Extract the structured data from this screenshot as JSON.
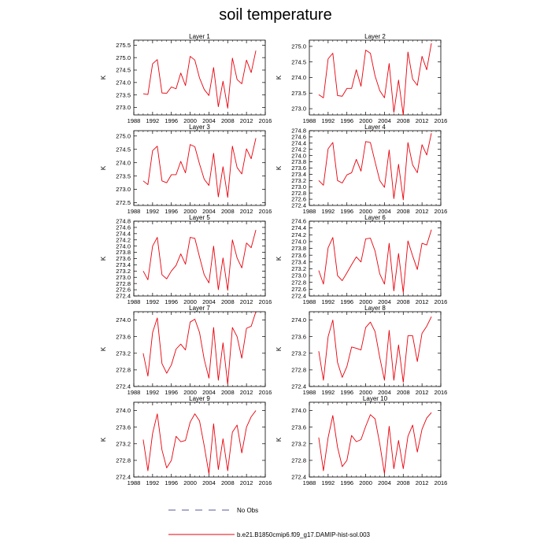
{
  "title": "soil temperature",
  "legend": {
    "obs_label": "No Obs",
    "model_label": "b.e21.B1850cmip6.f09_g17.DAMIP-hist-sol.003"
  },
  "colors": {
    "model": "#e8000b",
    "obs": "#5a5a9a",
    "axis": "#000000"
  },
  "chart_data": [
    {
      "type": "line",
      "title": "Layer 1",
      "ylabel": "K",
      "xlim": [
        1988,
        2016
      ],
      "xticks": [
        1988,
        1992,
        1996,
        2000,
        2004,
        2008,
        2012,
        2016
      ],
      "ylim": [
        272.7,
        275.7
      ],
      "yticks": [
        273.0,
        273.5,
        274.0,
        274.5,
        275.0,
        275.5
      ],
      "ydecimals": 1,
      "x": [
        1990,
        1991,
        1992,
        1993,
        1994,
        1995,
        1996,
        1997,
        1998,
        1999,
        2000,
        2001,
        2002,
        2003,
        2004,
        2005,
        2006,
        2007,
        2008,
        2009,
        2010,
        2011,
        2012,
        2013,
        2014
      ],
      "series": [
        {
          "values": [
            273.55,
            273.52,
            274.75,
            274.92,
            273.58,
            273.57,
            273.82,
            273.75,
            274.38,
            273.88,
            275.05,
            274.9,
            274.18,
            273.72,
            273.48,
            274.6,
            273.03,
            274.05,
            272.97,
            274.98,
            274.12,
            273.95,
            274.9,
            274.4,
            275.28
          ]
        }
      ]
    },
    {
      "type": "line",
      "title": "Layer 2",
      "ylabel": "K",
      "xlim": [
        1988,
        2016
      ],
      "xticks": [
        1988,
        1992,
        1996,
        2000,
        2004,
        2008,
        2012,
        2016
      ],
      "ylim": [
        272.8,
        275.2
      ],
      "yticks": [
        273.0,
        273.5,
        274.0,
        274.5,
        275.0
      ],
      "ydecimals": 1,
      "x": [
        1990,
        1991,
        1992,
        1993,
        1994,
        1995,
        1996,
        1997,
        1998,
        1999,
        2000,
        2001,
        2002,
        2003,
        2004,
        2005,
        2006,
        2007,
        2008,
        2009,
        2010,
        2011,
        2012,
        2013,
        2014
      ],
      "series": [
        {
          "values": [
            273.45,
            273.35,
            274.6,
            274.78,
            273.42,
            273.4,
            273.65,
            273.65,
            274.25,
            273.72,
            274.88,
            274.78,
            274.05,
            273.58,
            273.35,
            274.45,
            272.88,
            273.92,
            272.8,
            274.82,
            273.95,
            273.75,
            274.68,
            274.25,
            275.1
          ]
        }
      ]
    },
    {
      "type": "line",
      "title": "Layer 3",
      "ylabel": "K",
      "xlim": [
        1988,
        2016
      ],
      "xticks": [
        1988,
        1992,
        1996,
        2000,
        2004,
        2008,
        2012,
        2016
      ],
      "ylim": [
        272.4,
        275.2
      ],
      "yticks": [
        272.5,
        273.0,
        273.5,
        274.0,
        274.5,
        275.0
      ],
      "ydecimals": 1,
      "x": [
        1990,
        1991,
        1992,
        1993,
        1994,
        1995,
        1996,
        1997,
        1998,
        1999,
        2000,
        2001,
        2002,
        2003,
        2004,
        2005,
        2006,
        2007,
        2008,
        2009,
        2010,
        2011,
        2012,
        2013,
        2014
      ],
      "series": [
        {
          "values": [
            273.32,
            273.18,
            274.45,
            274.62,
            273.32,
            273.25,
            273.55,
            273.55,
            274.05,
            273.62,
            274.68,
            274.6,
            273.95,
            273.38,
            273.15,
            274.35,
            272.72,
            273.85,
            272.7,
            274.62,
            273.82,
            273.58,
            274.52,
            274.15,
            274.92
          ]
        }
      ]
    },
    {
      "type": "line",
      "title": "Layer 4",
      "ylabel": "K",
      "xlim": [
        1988,
        2016
      ],
      "xticks": [
        1988,
        1992,
        1996,
        2000,
        2004,
        2008,
        2012,
        2016
      ],
      "ylim": [
        272.4,
        274.8
      ],
      "yticks": [
        272.4,
        272.6,
        272.8,
        273.0,
        273.2,
        273.4,
        273.6,
        273.8,
        274.0,
        274.2,
        274.4,
        274.6,
        274.8
      ],
      "ydecimals": 1,
      "x": [
        1990,
        1991,
        1992,
        1993,
        1994,
        1995,
        1996,
        1997,
        1998,
        1999,
        2000,
        2001,
        2002,
        2003,
        2004,
        2005,
        2006,
        2007,
        2008,
        2009,
        2010,
        2011,
        2012,
        2013,
        2014
      ],
      "series": [
        {
          "values": [
            273.2,
            273.05,
            274.22,
            274.42,
            273.2,
            273.12,
            273.38,
            273.45,
            273.88,
            273.5,
            274.45,
            274.42,
            273.8,
            273.2,
            272.98,
            274.18,
            272.62,
            273.72,
            272.58,
            274.42,
            273.7,
            273.45,
            274.35,
            274.02,
            274.72
          ]
        }
      ]
    },
    {
      "type": "line",
      "title": "Layer 5",
      "ylabel": "K",
      "xlim": [
        1988,
        2016
      ],
      "xticks": [
        1988,
        1992,
        1996,
        2000,
        2004,
        2008,
        2012,
        2016
      ],
      "ylim": [
        272.4,
        274.8
      ],
      "yticks": [
        272.4,
        272.6,
        272.8,
        273.0,
        273.2,
        273.4,
        273.6,
        273.8,
        274.0,
        274.2,
        274.4,
        274.6,
        274.8
      ],
      "ydecimals": 1,
      "x": [
        1990,
        1991,
        1992,
        1993,
        1994,
        1995,
        1996,
        1997,
        1998,
        1999,
        2000,
        2001,
        2002,
        2003,
        2004,
        2005,
        2006,
        2007,
        2008,
        2009,
        2010,
        2011,
        2012,
        2013,
        2014
      ],
      "series": [
        {
          "values": [
            273.2,
            272.92,
            274.0,
            274.28,
            273.08,
            272.95,
            273.2,
            273.38,
            273.75,
            273.42,
            274.28,
            274.25,
            273.65,
            273.08,
            272.82,
            274.0,
            272.6,
            273.62,
            272.58,
            274.2,
            273.62,
            273.3,
            274.1,
            273.95,
            274.52
          ]
        }
      ]
    },
    {
      "type": "line",
      "title": "Layer 6",
      "ylabel": "K",
      "xlim": [
        1988,
        2016
      ],
      "xticks": [
        1988,
        1992,
        1996,
        2000,
        2004,
        2008,
        2012,
        2016
      ],
      "ylim": [
        272.4,
        274.6
      ],
      "yticks": [
        272.4,
        272.6,
        272.8,
        273.0,
        273.2,
        273.4,
        273.6,
        273.8,
        274.0,
        274.2,
        274.4,
        274.6
      ],
      "ydecimals": 1,
      "x": [
        1990,
        1991,
        1992,
        1993,
        1994,
        1995,
        1996,
        1997,
        1998,
        1999,
        2000,
        2001,
        2002,
        2003,
        2004,
        2005,
        2006,
        2007,
        2008,
        2009,
        2010,
        2011,
        2012,
        2013,
        2014
      ],
      "series": [
        {
          "values": [
            273.15,
            272.75,
            273.82,
            274.12,
            273.0,
            272.85,
            273.08,
            273.32,
            273.55,
            273.4,
            274.08,
            274.1,
            273.72,
            273.05,
            272.75,
            273.95,
            272.55,
            273.65,
            272.5,
            274.02,
            273.58,
            273.18,
            273.95,
            273.9,
            274.35
          ]
        }
      ]
    },
    {
      "type": "line",
      "title": "Layer 7",
      "ylabel": "K",
      "xlim": [
        1988,
        2016
      ],
      "xticks": [
        1988,
        1992,
        1996,
        2000,
        2004,
        2008,
        2012,
        2016
      ],
      "ylim": [
        272.4,
        274.2
      ],
      "yticks": [
        272.4,
        272.8,
        273.2,
        273.6,
        274.0
      ],
      "ydecimals": 1,
      "x": [
        1990,
        1991,
        1992,
        1993,
        1994,
        1995,
        1996,
        1997,
        1998,
        1999,
        2000,
        2001,
        2002,
        2003,
        2004,
        2005,
        2006,
        2007,
        2008,
        2009,
        2010,
        2011,
        2012,
        2013,
        2014
      ],
      "series": [
        {
          "values": [
            273.2,
            272.65,
            273.7,
            274.05,
            272.95,
            272.72,
            272.92,
            273.3,
            273.42,
            273.28,
            273.95,
            274.02,
            273.7,
            273.05,
            272.6,
            273.82,
            272.55,
            273.45,
            272.45,
            273.82,
            273.6,
            273.08,
            273.8,
            273.85,
            274.2
          ]
        }
      ]
    },
    {
      "type": "line",
      "title": "Layer 8",
      "ylabel": "K",
      "xlim": [
        1988,
        2016
      ],
      "xticks": [
        1988,
        1992,
        1996,
        2000,
        2004,
        2008,
        2012,
        2016
      ],
      "ylim": [
        272.4,
        274.2
      ],
      "yticks": [
        272.4,
        272.8,
        273.2,
        273.6,
        274.0
      ],
      "ydecimals": 1,
      "x": [
        1990,
        1991,
        1992,
        1993,
        1994,
        1995,
        1996,
        1997,
        1998,
        1999,
        2000,
        2001,
        2002,
        2003,
        2004,
        2005,
        2006,
        2007,
        2008,
        2009,
        2010,
        2011,
        2012,
        2013,
        2014
      ],
      "series": [
        {
          "values": [
            273.25,
            272.55,
            273.6,
            274.0,
            272.98,
            272.62,
            272.88,
            273.35,
            273.32,
            273.28,
            273.82,
            273.95,
            273.72,
            273.1,
            272.55,
            273.75,
            272.55,
            273.4,
            272.5,
            273.62,
            273.62,
            273.0,
            273.68,
            273.85,
            274.08
          ]
        }
      ]
    },
    {
      "type": "line",
      "title": "Layer 9",
      "ylabel": "K",
      "xlim": [
        1988,
        2016
      ],
      "xticks": [
        1988,
        1992,
        1996,
        2000,
        2004,
        2008,
        2012,
        2016
      ],
      "ylim": [
        272.4,
        274.2
      ],
      "yticks": [
        272.4,
        272.8,
        273.2,
        273.6,
        274.0
      ],
      "ydecimals": 1,
      "x": [
        1990,
        1991,
        1992,
        1993,
        1994,
        1995,
        1996,
        1997,
        1998,
        1999,
        2000,
        2001,
        2002,
        2003,
        2004,
        2005,
        2006,
        2007,
        2008,
        2009,
        2010,
        2011,
        2012,
        2013,
        2014
      ],
      "series": [
        {
          "values": [
            273.3,
            272.55,
            273.45,
            273.92,
            273.05,
            272.62,
            272.8,
            273.38,
            273.25,
            273.28,
            273.72,
            273.92,
            273.75,
            273.15,
            272.48,
            273.68,
            272.58,
            273.32,
            272.55,
            273.48,
            273.65,
            272.98,
            273.6,
            273.85,
            274.0
          ]
        }
      ]
    },
    {
      "type": "line",
      "title": "Layer 10",
      "ylabel": "K",
      "xlim": [
        1988,
        2016
      ],
      "xticks": [
        1988,
        1992,
        1996,
        2000,
        2004,
        2008,
        2012,
        2016
      ],
      "ylim": [
        272.4,
        274.2
      ],
      "yticks": [
        272.4,
        272.8,
        273.2,
        273.6,
        274.0
      ],
      "ydecimals": 1,
      "x": [
        1990,
        1991,
        1992,
        1993,
        1994,
        1995,
        1996,
        1997,
        1998,
        1999,
        2000,
        2001,
        2002,
        2003,
        2004,
        2005,
        2006,
        2007,
        2008,
        2009,
        2010,
        2011,
        2012,
        2013,
        2014
      ],
      "series": [
        {
          "values": [
            273.35,
            272.55,
            273.35,
            273.88,
            273.12,
            272.65,
            272.8,
            273.4,
            273.25,
            273.3,
            273.62,
            273.9,
            273.8,
            273.2,
            272.48,
            273.62,
            272.6,
            273.28,
            272.6,
            273.38,
            273.65,
            273.0,
            273.55,
            273.82,
            273.95
          ]
        }
      ]
    }
  ]
}
